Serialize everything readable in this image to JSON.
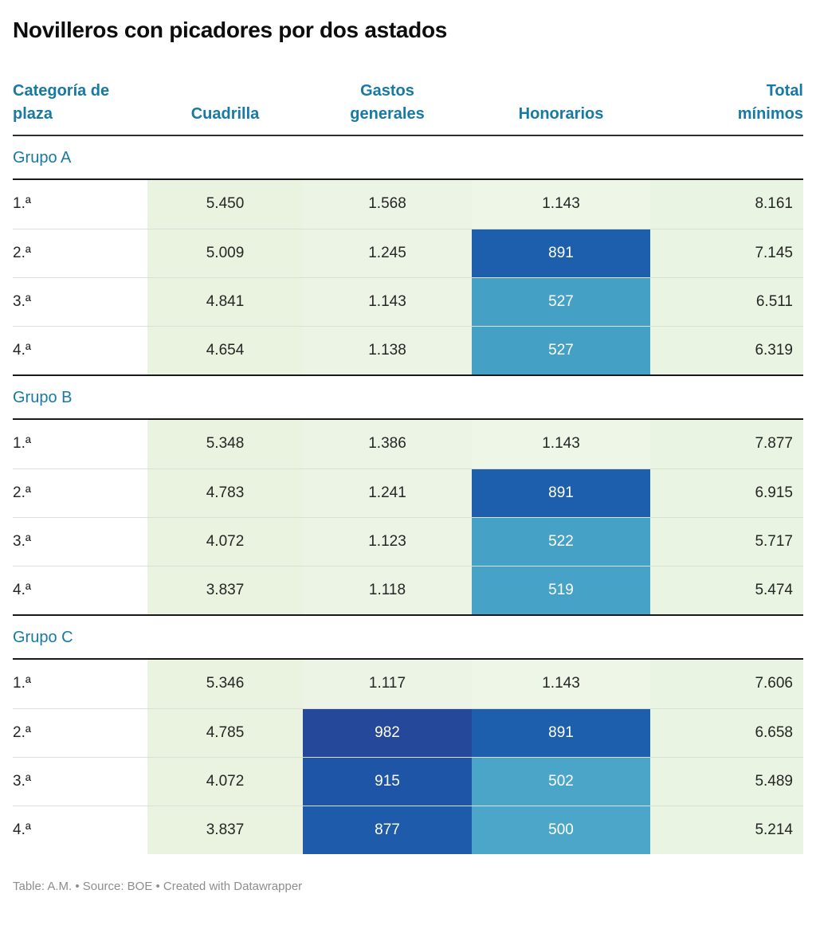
{
  "title": "Novilleros con picadores por dos astados",
  "colors": {
    "accent_header": "#1779a4",
    "rule_dark": "#191919",
    "row_separator": "#dcdfd8",
    "green_cuadrilla": "#e9f3df",
    "green_gastos": "#ecf5e5",
    "green_honorarios": "#edf6e7",
    "green_total": "#eaf4e2",
    "blue_dark": "#1d5fac",
    "blue_navy": "#26489a",
    "blue_light": "#45a0c6",
    "footer_gray": "#8d8d8d"
  },
  "header": {
    "columns": [
      {
        "label": "Categoría de plaza"
      },
      {
        "label": "Cuadrilla"
      },
      {
        "label": "Gastos generales"
      },
      {
        "label": "Honorarios"
      },
      {
        "label": "Total mínimos"
      }
    ]
  },
  "groups": [
    {
      "label": "Grupo A",
      "rows": [
        {
          "label": "1.ª",
          "cells": [
            {
              "v": "5.450",
              "bg": "#e9f3df",
              "fg": "#262626"
            },
            {
              "v": "1.568",
              "bg": "#ecf5e5",
              "fg": "#262626"
            },
            {
              "v": "1.143",
              "bg": "#edf6e7",
              "fg": "#262626"
            },
            {
              "v": "8.161",
              "bg": "#eaf4e2",
              "fg": "#262626"
            }
          ]
        },
        {
          "label": "2.ª",
          "cells": [
            {
              "v": "5.009",
              "bg": "#e9f3df",
              "fg": "#262626"
            },
            {
              "v": "1.245",
              "bg": "#ecf5e5",
              "fg": "#262626"
            },
            {
              "v": "891",
              "bg": "#1d5fac",
              "fg": "#ffffff"
            },
            {
              "v": "7.145",
              "bg": "#eaf4e2",
              "fg": "#262626"
            }
          ]
        },
        {
          "label": "3.ª",
          "cells": [
            {
              "v": "4.841",
              "bg": "#e9f3df",
              "fg": "#262626"
            },
            {
              "v": "1.143",
              "bg": "#ecf5e5",
              "fg": "#262626"
            },
            {
              "v": "527",
              "bg": "#45a0c6",
              "fg": "#ffffff"
            },
            {
              "v": "6.511",
              "bg": "#eaf4e2",
              "fg": "#262626"
            }
          ]
        },
        {
          "label": "4.ª",
          "cells": [
            {
              "v": "4.654",
              "bg": "#e9f3df",
              "fg": "#262626"
            },
            {
              "v": "1.138",
              "bg": "#ecf5e5",
              "fg": "#262626"
            },
            {
              "v": "527",
              "bg": "#45a0c6",
              "fg": "#ffffff"
            },
            {
              "v": "6.319",
              "bg": "#eaf4e2",
              "fg": "#262626"
            }
          ]
        }
      ]
    },
    {
      "label": "Grupo B",
      "rows": [
        {
          "label": "1.ª",
          "cells": [
            {
              "v": "5.348",
              "bg": "#e9f3df",
              "fg": "#262626"
            },
            {
              "v": "1.386",
              "bg": "#ecf5e5",
              "fg": "#262626"
            },
            {
              "v": "1.143",
              "bg": "#edf6e7",
              "fg": "#262626"
            },
            {
              "v": "7.877",
              "bg": "#eaf4e2",
              "fg": "#262626"
            }
          ]
        },
        {
          "label": "2.ª",
          "cells": [
            {
              "v": "4.783",
              "bg": "#e9f3df",
              "fg": "#262626"
            },
            {
              "v": "1.241",
              "bg": "#ecf5e5",
              "fg": "#262626"
            },
            {
              "v": "891",
              "bg": "#1d5fac",
              "fg": "#ffffff"
            },
            {
              "v": "6.915",
              "bg": "#eaf4e2",
              "fg": "#262626"
            }
          ]
        },
        {
          "label": "3.ª",
          "cells": [
            {
              "v": "4.072",
              "bg": "#e9f3df",
              "fg": "#262626"
            },
            {
              "v": "1.123",
              "bg": "#ecf5e5",
              "fg": "#262626"
            },
            {
              "v": "522",
              "bg": "#46a1c6",
              "fg": "#ffffff"
            },
            {
              "v": "5.717",
              "bg": "#eaf4e2",
              "fg": "#262626"
            }
          ]
        },
        {
          "label": "4.ª",
          "cells": [
            {
              "v": "3.837",
              "bg": "#e9f3df",
              "fg": "#262626"
            },
            {
              "v": "1.118",
              "bg": "#ecf5e5",
              "fg": "#262626"
            },
            {
              "v": "519",
              "bg": "#47a2c7",
              "fg": "#ffffff"
            },
            {
              "v": "5.474",
              "bg": "#eaf4e2",
              "fg": "#262626"
            }
          ]
        }
      ]
    },
    {
      "label": "Grupo C",
      "rows": [
        {
          "label": "1.ª",
          "cells": [
            {
              "v": "5.346",
              "bg": "#e9f3df",
              "fg": "#262626"
            },
            {
              "v": "1.117",
              "bg": "#ecf5e5",
              "fg": "#262626"
            },
            {
              "v": "1.143",
              "bg": "#edf6e7",
              "fg": "#262626"
            },
            {
              "v": "7.606",
              "bg": "#eaf4e2",
              "fg": "#262626"
            }
          ]
        },
        {
          "label": "2.ª",
          "cells": [
            {
              "v": "4.785",
              "bg": "#e9f3df",
              "fg": "#262626"
            },
            {
              "v": "982",
              "bg": "#26489a",
              "fg": "#ffffff"
            },
            {
              "v": "891",
              "bg": "#1d5fac",
              "fg": "#ffffff"
            },
            {
              "v": "6.658",
              "bg": "#eaf4e2",
              "fg": "#262626"
            }
          ]
        },
        {
          "label": "3.ª",
          "cells": [
            {
              "v": "4.072",
              "bg": "#e9f3df",
              "fg": "#262626"
            },
            {
              "v": "915",
              "bg": "#1f55a6",
              "fg": "#ffffff"
            },
            {
              "v": "502",
              "bg": "#4aa5c9",
              "fg": "#ffffff"
            },
            {
              "v": "5.489",
              "bg": "#eaf4e2",
              "fg": "#262626"
            }
          ]
        },
        {
          "label": "4.ª",
          "cells": [
            {
              "v": "3.837",
              "bg": "#e9f3df",
              "fg": "#262626"
            },
            {
              "v": "877",
              "bg": "#1e5cab",
              "fg": "#ffffff"
            },
            {
              "v": "500",
              "bg": "#4ba6ca",
              "fg": "#ffffff"
            },
            {
              "v": "5.214",
              "bg": "#eaf4e2",
              "fg": "#262626"
            }
          ]
        }
      ]
    }
  ],
  "footer": {
    "text": "Table: A.M. • Source: BOE • Created with Datawrapper"
  },
  "chart_data": {
    "type": "table",
    "title": "Novilleros con picadores por dos astados",
    "columns": [
      "Categoría de plaza",
      "Cuadrilla",
      "Gastos generales",
      "Honorarios",
      "Total mínimos"
    ],
    "groups": [
      {
        "name": "Grupo A",
        "rows": [
          [
            "1.ª",
            5450,
            1568,
            1143,
            8161
          ],
          [
            "2.ª",
            5009,
            1245,
            891,
            7145
          ],
          [
            "3.ª",
            4841,
            1143,
            527,
            6511
          ],
          [
            "4.ª",
            4654,
            1138,
            527,
            6319
          ]
        ]
      },
      {
        "name": "Grupo B",
        "rows": [
          [
            "1.ª",
            5348,
            1386,
            1143,
            7877
          ],
          [
            "2.ª",
            4783,
            1241,
            891,
            6915
          ],
          [
            "3.ª",
            4072,
            1123,
            522,
            5717
          ],
          [
            "4.ª",
            3837,
            1118,
            519,
            5474
          ]
        ]
      },
      {
        "name": "Grupo C",
        "rows": [
          [
            "1.ª",
            5346,
            1117,
            1143,
            7606
          ],
          [
            "2.ª",
            4785,
            982,
            891,
            6658
          ],
          [
            "3.ª",
            4072,
            915,
            502,
            5489
          ],
          [
            "4.ª",
            3837,
            877,
            500,
            5214
          ]
        ]
      }
    ],
    "legend_position": "none",
    "grid": "horizontal-rules"
  }
}
